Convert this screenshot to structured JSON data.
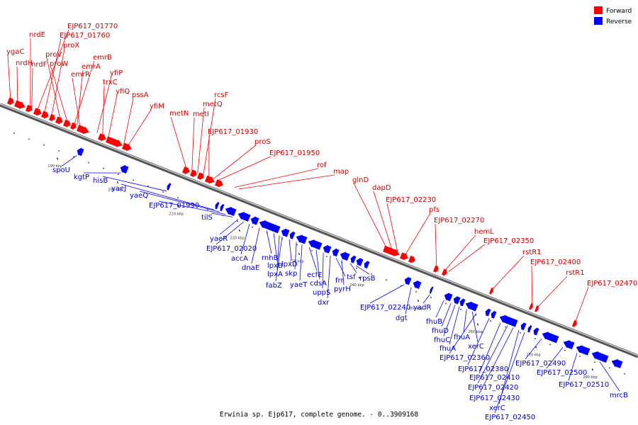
{
  "caption": "Erwinia sp. Ejp617, complete genome. - 0..3909168",
  "legend": [
    {
      "label": "Forward",
      "color": "#ff0000"
    },
    {
      "label": "Reverse",
      "color": "#0000ff"
    }
  ],
  "colors": {
    "forward": "#ff0000",
    "reverse": "#0000ff",
    "backbone": "#777777",
    "forward_label": "#cc0000",
    "reverse_label": "#0000cc"
  },
  "ticks": [
    "190 kbp",
    "200 kbp",
    "210 kbp",
    "220 kbp",
    "230 kbp",
    "240 kbp",
    "250 kbp",
    "260 kbp",
    "270 kbp",
    "280 kbp"
  ],
  "forward_genes": [
    "ygaC",
    "nrdH",
    "nrdE",
    "nrdF",
    "EJP617_01770",
    "EJP617_01760",
    "proX",
    "proV",
    "proW",
    "emrB",
    "emrA",
    "emrR",
    "yfiP",
    "trxC",
    "yfiQ",
    "pssA",
    "yfiM",
    "metN",
    "metI",
    "metQ",
    "rcsF",
    "EJP617_01930",
    "proS",
    "EJP617_01950",
    "rof",
    "map",
    "glnD",
    "dapD",
    "EJP617_02230",
    "pfs",
    "EJP617_02270",
    "hemL",
    "EJP617_02350",
    "rstR1",
    "EJP617_02400",
    "rstR1",
    "EJP617_02470"
  ],
  "reverse_genes": [
    "spoU",
    "kgtP",
    "hisB",
    "yaeJ",
    "yaeQ",
    "EJP617_01990",
    "tilS",
    "yaeR",
    "EJP617_02020",
    "accA",
    "dnaE",
    "rnhB",
    "lpxB",
    "lpxA",
    "fabZ",
    "lpxD",
    "skp",
    "yaeT",
    "ecfE",
    "cdsA",
    "uppS",
    "dxr",
    "frr",
    "pyrH",
    "tsf",
    "rpsB",
    "EJP617_02240",
    "dgt",
    "yadR",
    "fhuB",
    "fhuD",
    "fhuC",
    "fhuA",
    "fhuA",
    "xerC",
    "EJP617_02360",
    "EJP617_02380",
    "EJP617_02410",
    "EJP617_02420",
    "EJP617_02430",
    "xerC",
    "EJP617_02450",
    "EJP617_02490",
    "EJP617_02500",
    "EJP617_02510",
    "mrcB"
  ]
}
